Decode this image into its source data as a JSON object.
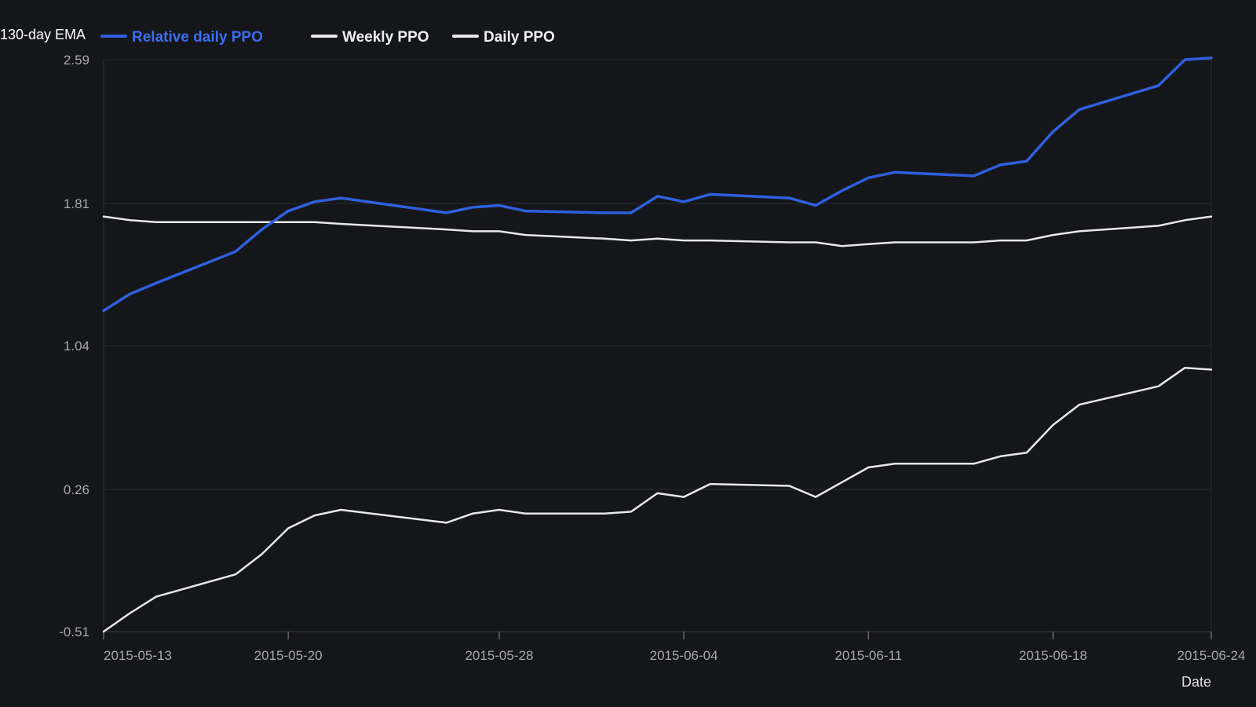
{
  "chart_data": {
    "type": "line",
    "ylabel": "130-day EMA",
    "xlabel": "Date",
    "ylim": [
      -0.51,
      2.59
    ],
    "yticks": [
      "2.59",
      "1.81",
      "1.04",
      "0.26",
      "-0.51"
    ],
    "xticks": [
      "2015-05-13",
      "2015-05-20",
      "2015-05-28",
      "2015-06-04",
      "2015-06-11",
      "2015-06-18",
      "2015-06-24"
    ],
    "x": [
      "2015-05-13",
      "2015-05-14",
      "2015-05-15",
      "2015-05-18",
      "2015-05-19",
      "2015-05-20",
      "2015-05-21",
      "2015-05-22",
      "2015-05-26",
      "2015-05-27",
      "2015-05-28",
      "2015-05-29",
      "2015-06-01",
      "2015-06-02",
      "2015-06-03",
      "2015-06-04",
      "2015-06-05",
      "2015-06-08",
      "2015-06-09",
      "2015-06-10",
      "2015-06-11",
      "2015-06-12",
      "2015-06-15",
      "2015-06-16",
      "2015-06-17",
      "2015-06-18",
      "2015-06-19",
      "2015-06-22",
      "2015-06-23",
      "2015-06-24"
    ],
    "series": [
      {
        "name": "Relative daily PPO",
        "color": "#2f5fdc",
        "values": [
          1.23,
          1.32,
          1.38,
          1.55,
          1.67,
          1.77,
          1.82,
          1.84,
          1.76,
          1.79,
          1.8,
          1.77,
          1.76,
          1.76,
          1.85,
          1.82,
          1.86,
          1.84,
          1.8,
          1.88,
          1.95,
          1.98,
          1.96,
          2.02,
          2.04,
          2.2,
          2.32,
          2.45,
          2.59,
          2.6
        ]
      },
      {
        "name": "Weekly PPO",
        "color": "#e8e8e8",
        "values": [
          1.74,
          1.72,
          1.71,
          1.71,
          1.71,
          1.71,
          1.71,
          1.7,
          1.67,
          1.66,
          1.66,
          1.64,
          1.62,
          1.61,
          1.62,
          1.61,
          1.61,
          1.6,
          1.6,
          1.58,
          1.59,
          1.6,
          1.6,
          1.61,
          1.61,
          1.64,
          1.66,
          1.69,
          1.72,
          1.74
        ]
      },
      {
        "name": "Daily PPO",
        "color": "#e8e8e8",
        "values": [
          -0.51,
          -0.41,
          -0.32,
          -0.2,
          -0.09,
          0.05,
          0.12,
          0.15,
          0.08,
          0.13,
          0.15,
          0.13,
          0.13,
          0.14,
          0.24,
          0.22,
          0.29,
          0.28,
          0.22,
          0.3,
          0.38,
          0.4,
          0.4,
          0.44,
          0.46,
          0.61,
          0.72,
          0.82,
          0.92,
          0.91
        ]
      }
    ],
    "grid": true,
    "legend_position": "top-left"
  }
}
